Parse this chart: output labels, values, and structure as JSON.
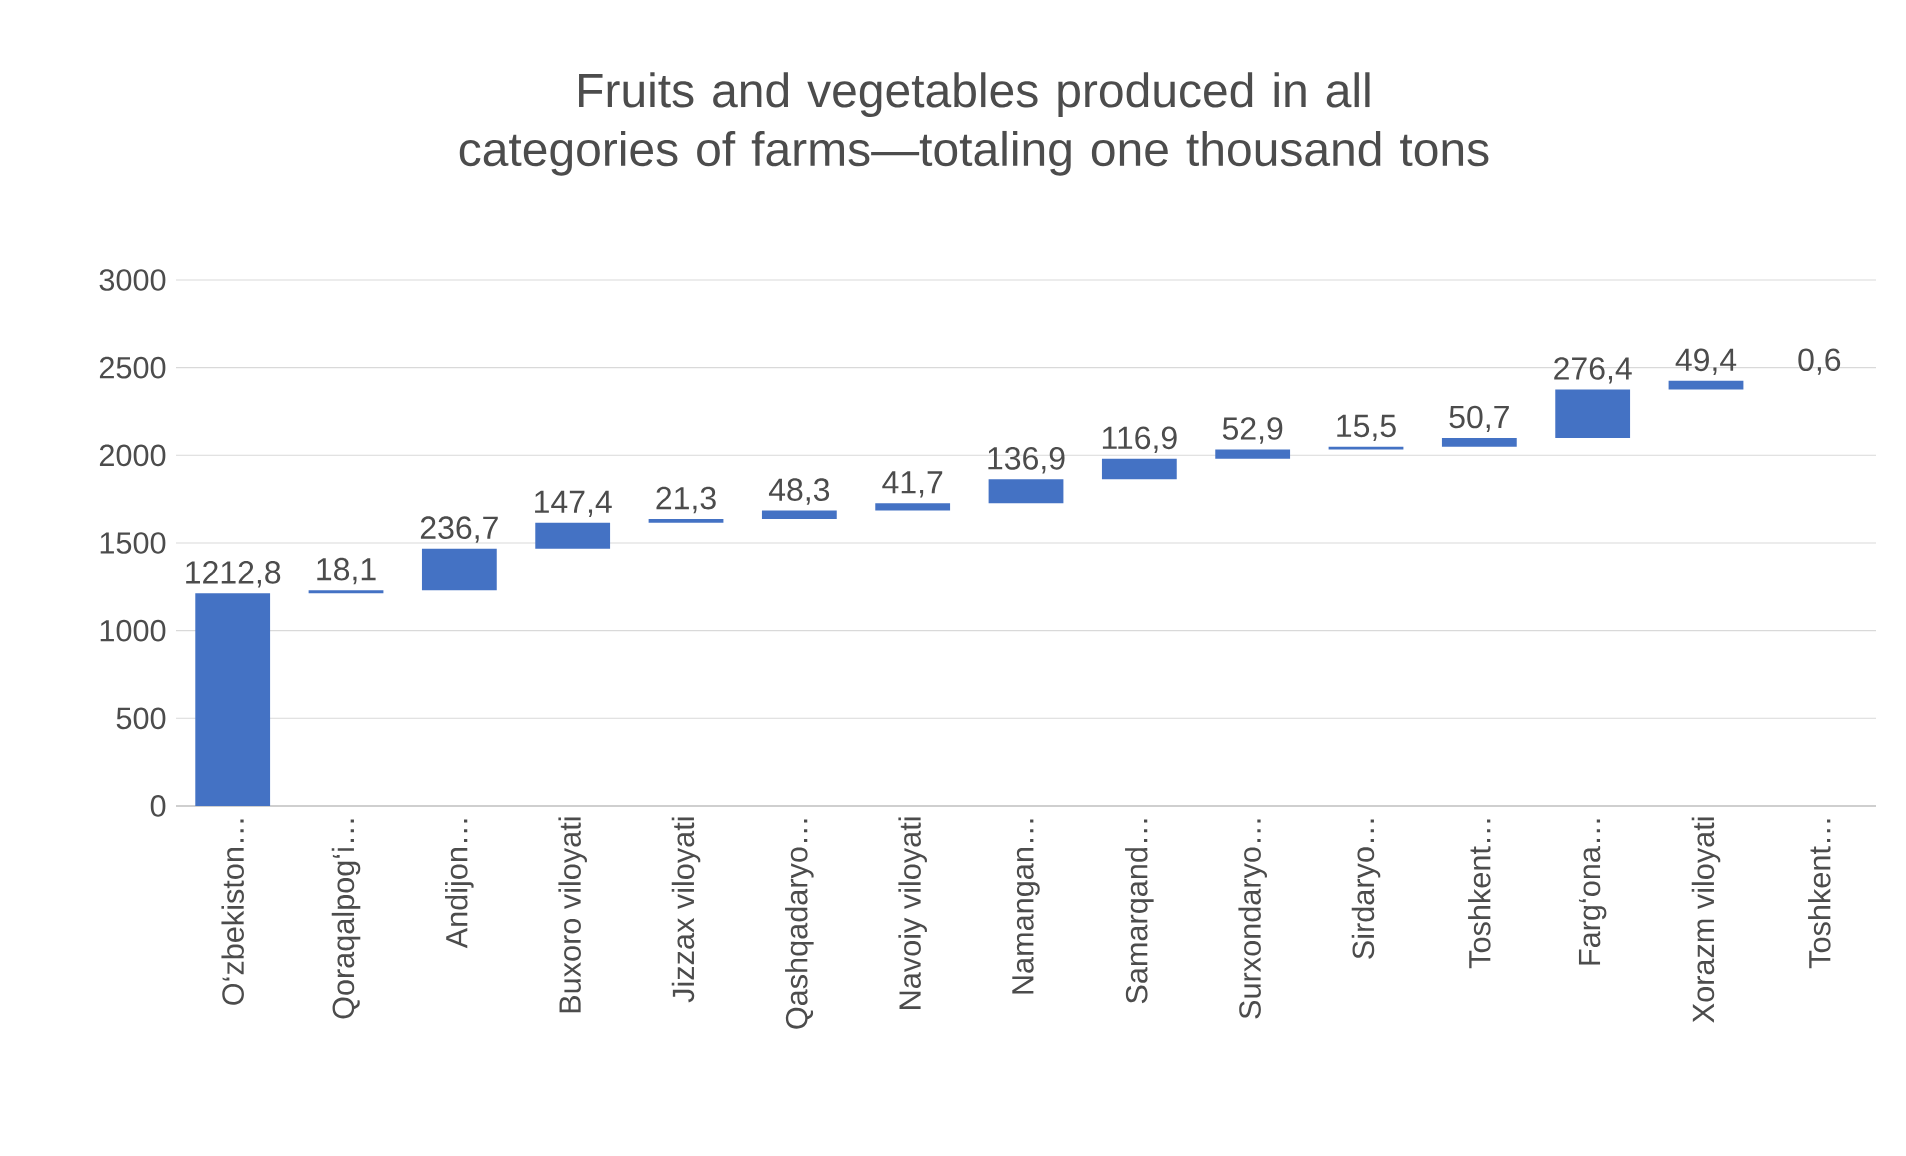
{
  "chart_data": {
    "type": "bar",
    "title": "Fruits and vegetables produced in all categories of farms—totaling one thousand tons",
    "categories": [
      "O‘zbekiston…",
      "Qoraqalpog‘i…",
      "Andijon…",
      "Buxoro viloyati",
      "Jizzax viloyati",
      "Qashqadaryo…",
      "Navoiy viloyati",
      "Namangan…",
      "Samarqand…",
      "Surxondaryo…",
      "Sirdaryo…",
      "Toshkent…",
      "Farg‘ona…",
      "Xorazm viloyati",
      "Toshkent…"
    ],
    "values": [
      1212.8,
      18.1,
      236.7,
      147.4,
      21.3,
      48.3,
      41.7,
      136.9,
      116.9,
      52.9,
      15.5,
      50.7,
      276.4,
      49.4,
      0.6
    ],
    "base": [
      0,
      1212.8,
      1230.9,
      1467.6,
      1615.0,
      1636.3,
      1684.6,
      1726.3,
      1863.2,
      1980.1,
      2033.0,
      2048.5,
      2099.2,
      2375.6,
      2425.0
    ],
    "value_labels": [
      "1212,8",
      "18,1",
      "236,7",
      "147,4",
      "21,3",
      "48,3",
      "41,7",
      "136,9",
      "116,9",
      "52,9",
      "15,5",
      "50,7",
      "276,4",
      "49,4",
      "0,6"
    ],
    "color": "#4472c4",
    "ylim": [
      0,
      3000
    ],
    "yticks": [
      0,
      500,
      1000,
      1500,
      2000,
      2500,
      3000
    ],
    "grid": "y"
  }
}
